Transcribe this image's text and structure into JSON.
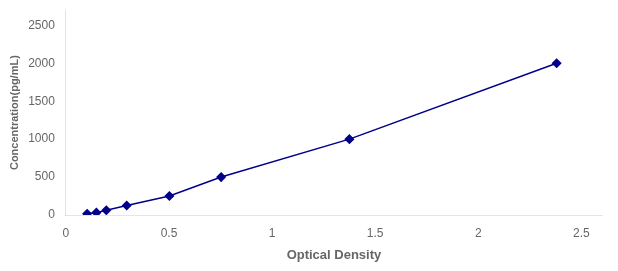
{
  "chart_data": {
    "type": "line",
    "x": [
      0.103,
      0.148,
      0.196,
      0.295,
      0.502,
      0.753,
      1.375,
      2.38
    ],
    "values": [
      15.6,
      31.25,
      62.5,
      125,
      250,
      500,
      1000,
      2000
    ],
    "color": "#00008B",
    "marker": "diamond",
    "xlabel": "Optical Density",
    "ylabel": "Concentration(pg/mL)",
    "xlim": [
      0,
      2.6
    ],
    "ylim": [
      0,
      2700
    ],
    "xticks": [
      0,
      0.5,
      1,
      1.5,
      2,
      2.5
    ],
    "yticks": [
      0,
      500,
      1000,
      1500,
      2000,
      2500
    ],
    "grid": false
  }
}
